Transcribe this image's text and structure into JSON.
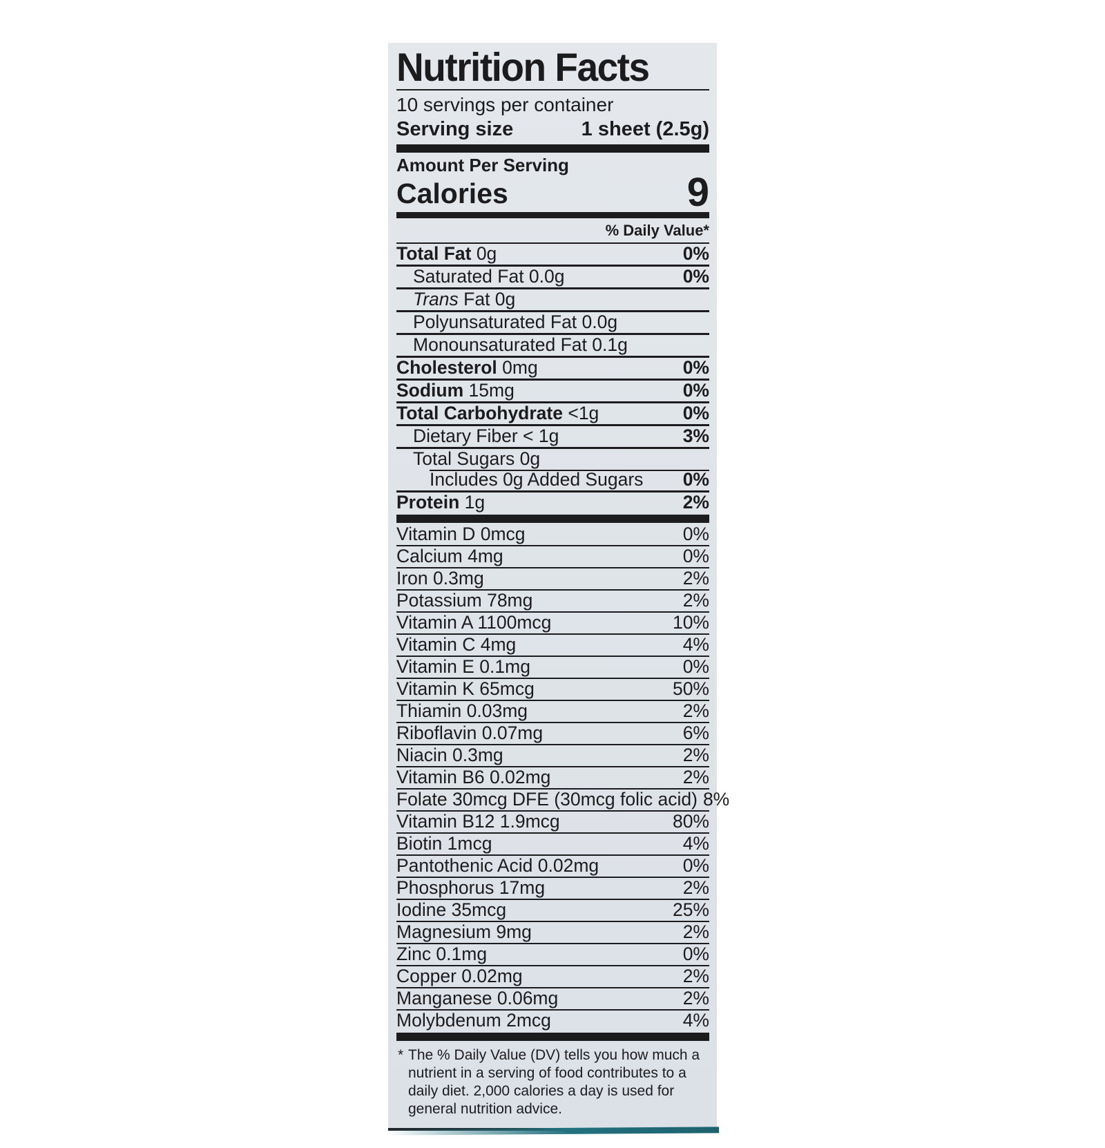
{
  "colors": {
    "page-bg": "#ffffff",
    "panel-bg": "#dfe4e9",
    "ink": "#1c1c1e",
    "teal": "#23717f"
  },
  "label": {
    "title": "Nutrition Facts",
    "servings_per_container": "10 servings per container",
    "serving_size_label": "Serving size",
    "serving_size_value": "1 sheet (2.5g)",
    "amount_per_serving": "Amount Per Serving",
    "calories_label": "Calories",
    "calories_value": "9",
    "daily_value_header": "% Daily Value*",
    "main_rows": [
      {
        "parts": [
          {
            "t": "Total Fat",
            "b": true
          },
          {
            "t": " 0g"
          }
        ],
        "dv": "0%",
        "indent": 0
      },
      {
        "parts": [
          {
            "t": "Saturated Fat 0.0g"
          }
        ],
        "dv": "0%",
        "indent": 1
      },
      {
        "parts": [
          {
            "t": "Trans",
            "i": true
          },
          {
            "t": " Fat 0g"
          }
        ],
        "dv": "",
        "indent": 1
      },
      {
        "parts": [
          {
            "t": "Polyunsaturated Fat 0.0g"
          }
        ],
        "dv": "",
        "indent": 1
      },
      {
        "parts": [
          {
            "t": "Monounsaturated Fat 0.1g"
          }
        ],
        "dv": "",
        "indent": 1
      },
      {
        "parts": [
          {
            "t": "Cholesterol",
            "b": true
          },
          {
            "t": " 0mg"
          }
        ],
        "dv": "0%",
        "indent": 0
      },
      {
        "parts": [
          {
            "t": "Sodium",
            "b": true
          },
          {
            "t": " 15mg"
          }
        ],
        "dv": "0%",
        "indent": 0
      },
      {
        "parts": [
          {
            "t": "Total Carbohydrate",
            "b": true
          },
          {
            "t": " <1g"
          }
        ],
        "dv": "0%",
        "indent": 0
      },
      {
        "parts": [
          {
            "t": "Dietary Fiber < 1g"
          }
        ],
        "dv": "3%",
        "indent": 1
      },
      {
        "parts": [
          {
            "t": "Total Sugars 0g"
          }
        ],
        "dv": "",
        "indent": 1
      },
      {
        "parts": [
          {
            "t": "Includes 0g Added Sugars"
          }
        ],
        "dv": "0%",
        "indent": 2,
        "indent_border": true
      },
      {
        "parts": [
          {
            "t": "Protein",
            "b": true
          },
          {
            "t": " 1g"
          }
        ],
        "dv": "2%",
        "indent": 0
      }
    ],
    "vitamin_rows": [
      {
        "name": "Vitamin D 0mcg",
        "dv": "0%"
      },
      {
        "name": "Calcium 4mg",
        "dv": "0%"
      },
      {
        "name": "Iron 0.3mg",
        "dv": "2%"
      },
      {
        "name": "Potassium 78mg",
        "dv": "2%"
      },
      {
        "name": "Vitamin A 1100mcg",
        "dv": "10%"
      },
      {
        "name": "Vitamin C 4mg",
        "dv": "4%"
      },
      {
        "name": "Vitamin E 0.1mg",
        "dv": "0%"
      },
      {
        "name": "Vitamin K 65mcg",
        "dv": "50%"
      },
      {
        "name": "Thiamin 0.03mg",
        "dv": "2%"
      },
      {
        "name": "Riboflavin 0.07mg",
        "dv": "6%"
      },
      {
        "name": "Niacin 0.3mg",
        "dv": "2%"
      },
      {
        "name": "Vitamin B6 0.02mg",
        "dv": "2%"
      },
      {
        "name": "Folate 30mcg DFE  (30mcg folic acid)",
        "dv": "8%"
      },
      {
        "name": "Vitamin B12 1.9mcg",
        "dv": "80%"
      },
      {
        "name": "Biotin 1mcg",
        "dv": "4%"
      },
      {
        "name": "Pantothenic Acid  0.02mg",
        "dv": "0%"
      },
      {
        "name": "Phosphorus 17mg",
        "dv": "2%"
      },
      {
        "name": "Iodine 35mcg",
        "dv": "25%"
      },
      {
        "name": "Magnesium 9mg",
        "dv": "2%"
      },
      {
        "name": "Zinc 0.1mg",
        "dv": "0%"
      },
      {
        "name": "Copper 0.02mg",
        "dv": "2%"
      },
      {
        "name": "Manganese 0.06mg",
        "dv": "2%"
      },
      {
        "name": "Molybdenum 2mcg",
        "dv": "4%"
      }
    ],
    "footnote_marker": "*",
    "footnote_text": "The % Daily Value (DV) tells you how much a nutrient in a serving of food contributes to a daily diet. 2,000 calories a day is used for general nutrition advice."
  }
}
